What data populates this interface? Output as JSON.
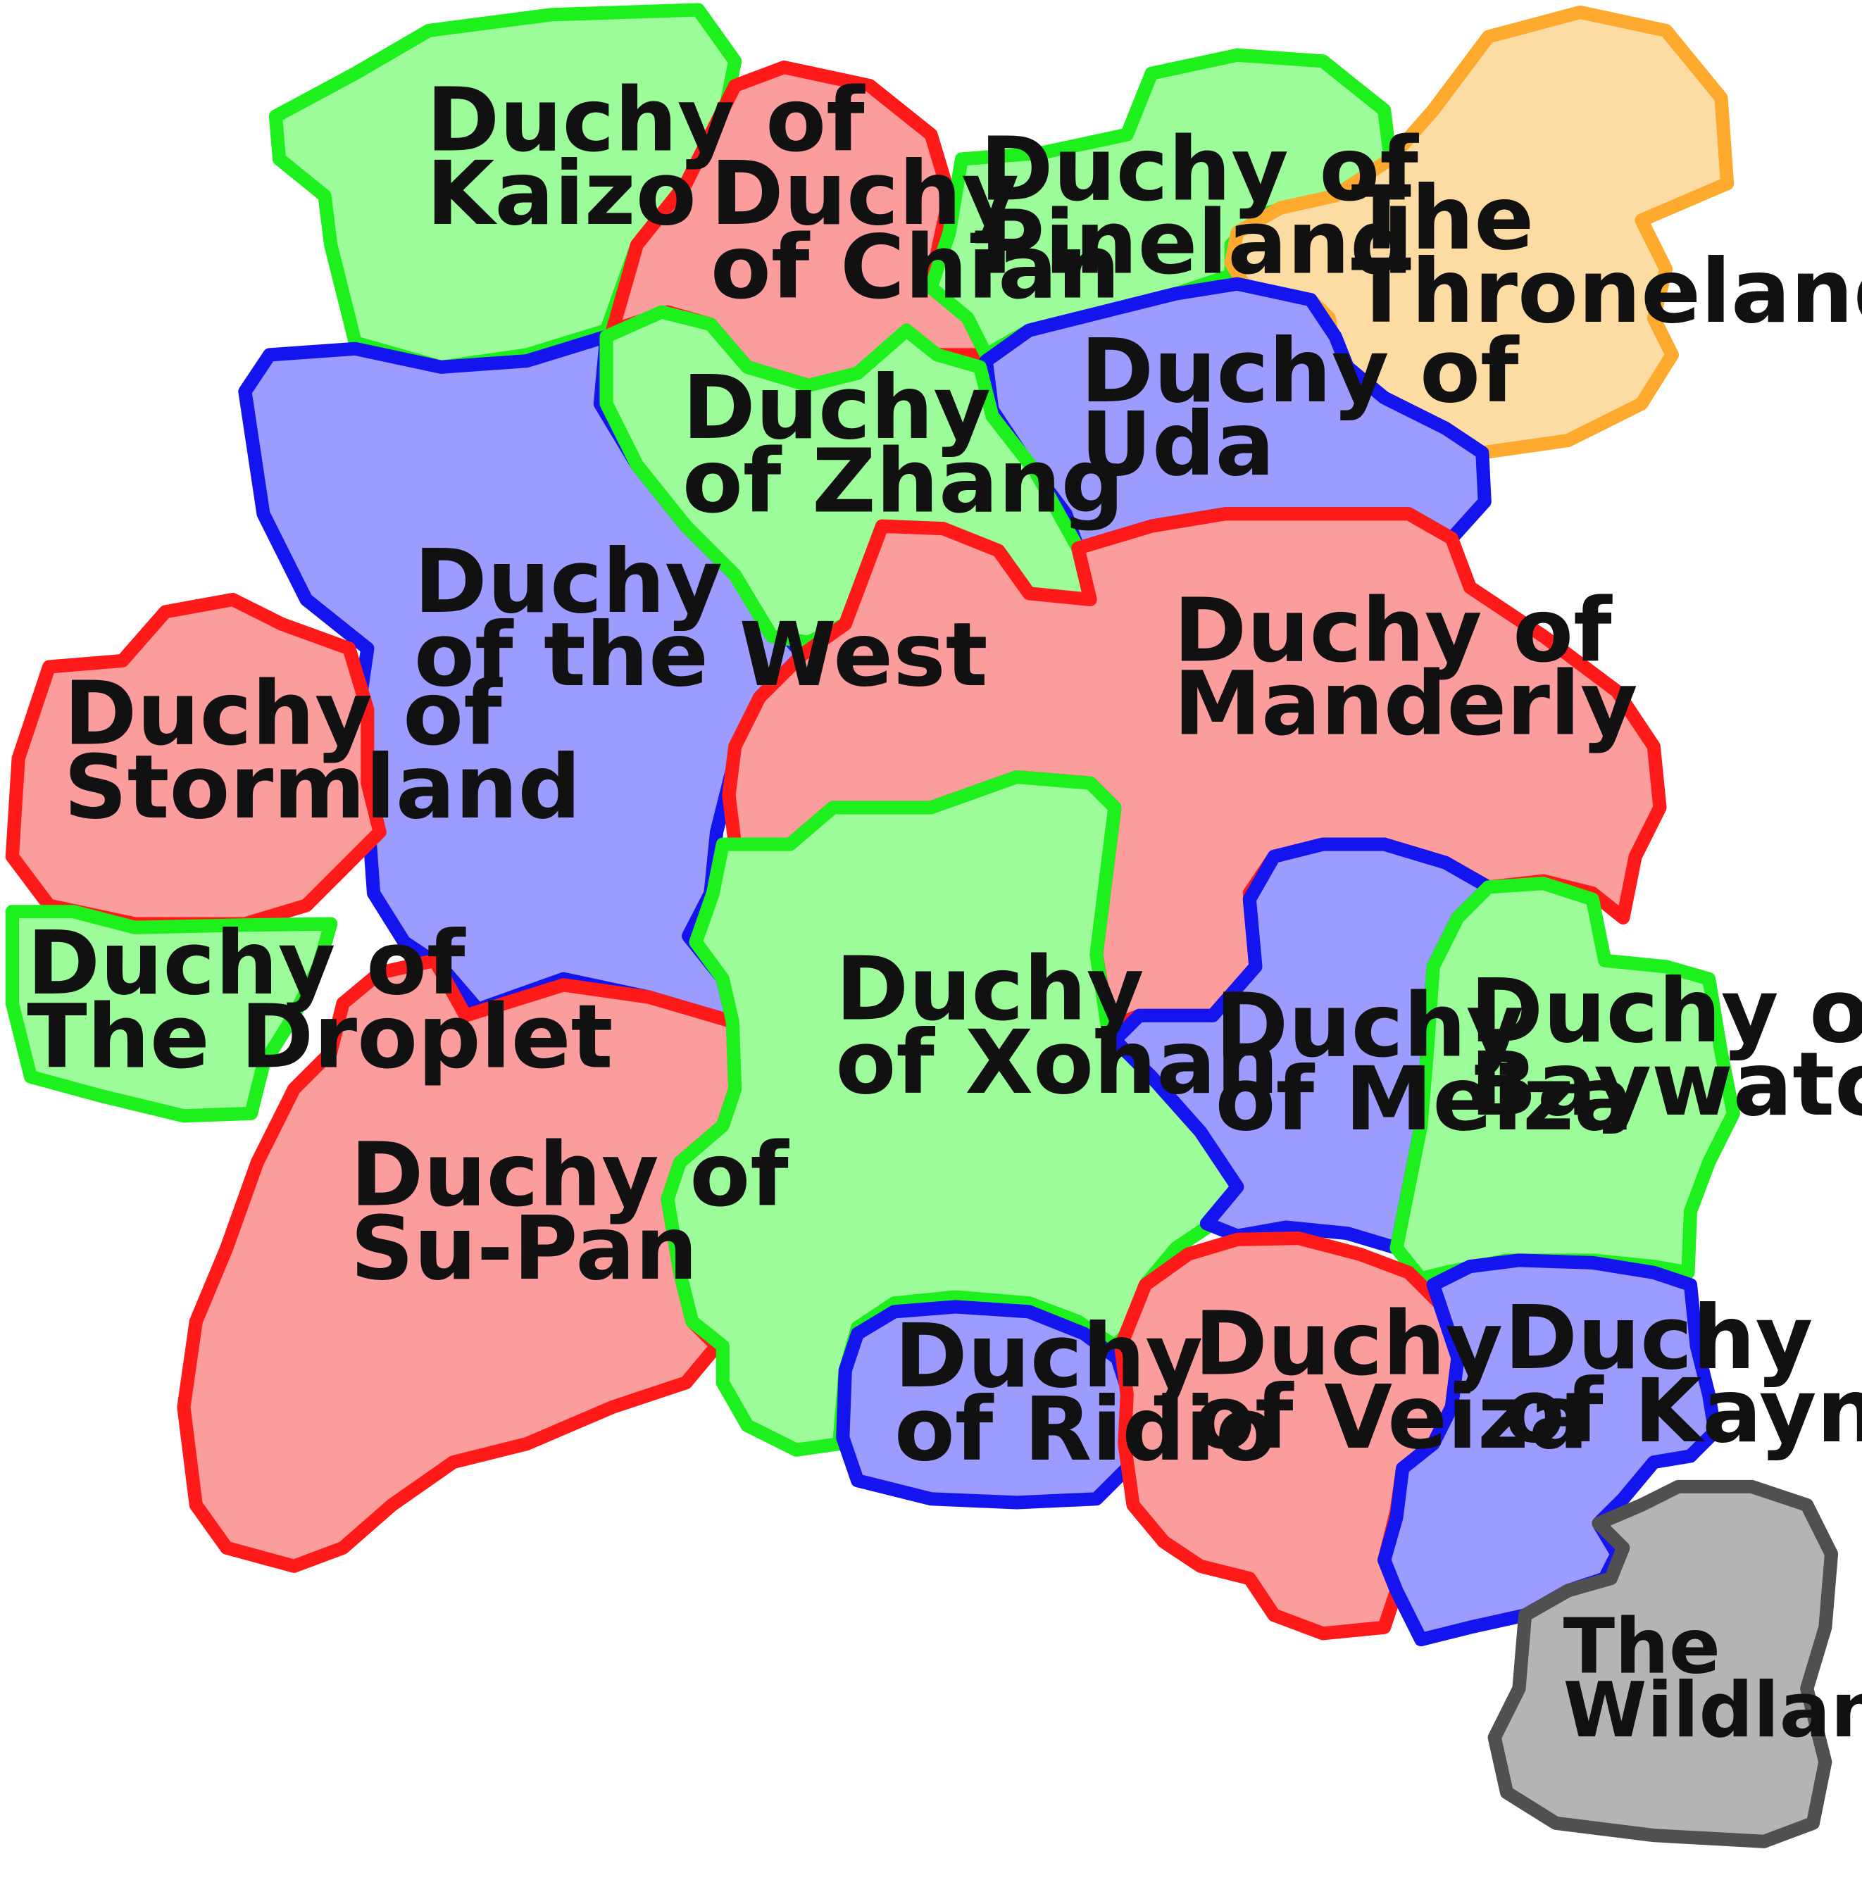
{
  "colors": {
    "red_fill": "#fb9d9d",
    "red_stroke": "#ff1a1a",
    "green_fill": "#9cfc99",
    "green_stroke": "#1ef01e",
    "blue_fill": "#9b9cfd",
    "blue_stroke": "#1414ee",
    "orange_fill": "#fddca3",
    "orange_stroke": "#fdaa2e",
    "gray_fill": "#b4b4b4",
    "gray_stroke": "#505050"
  },
  "regions": {
    "kaizo": [
      "Duchy of",
      "Kaizo"
    ],
    "chian": [
      "Duchy",
      "of Chian"
    ],
    "pineland": [
      "Duchy of",
      "Pineland"
    ],
    "thronelands": [
      "The",
      "Thronelands"
    ],
    "uda": [
      "Duchy of",
      "Uda"
    ],
    "zhang": [
      "Duchy",
      "of Zhang"
    ],
    "west": [
      "Duchy",
      "of the West"
    ],
    "stormland": [
      "Duchy of",
      "Stormland"
    ],
    "droplet": [
      "Duchy of",
      "The Droplet"
    ],
    "manderly": [
      "Duchy of",
      "Manderly"
    ],
    "supan": [
      "Duchy of",
      "Su-Pan"
    ],
    "xohan": [
      "Duchy",
      "of Xohan"
    ],
    "meiza": [
      "Duchy",
      "of Meiza"
    ],
    "baywatch": [
      "Duchy of",
      "Baywatch"
    ],
    "ridio": [
      "Duchy",
      "of Ridio"
    ],
    "veiza": [
      "Duchy",
      "of Veiza"
    ],
    "kayn": [
      "Duchy",
      "of Kayn"
    ],
    "wildlands": [
      "The",
      "Wildlands"
    ]
  }
}
